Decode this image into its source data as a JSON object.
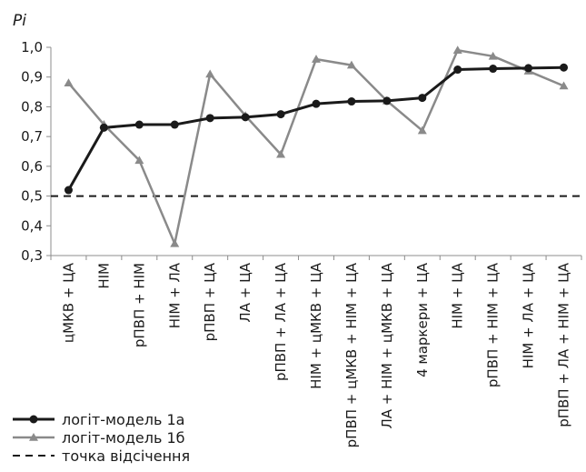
{
  "chart_data": {
    "type": "line",
    "ylabel": "Pi",
    "ylim": [
      0.3,
      1.0
    ],
    "yticks": [
      "0,3",
      "0,4",
      "0,5",
      "0,6",
      "0,7",
      "0,8",
      "0,9",
      "1,0"
    ],
    "categories": [
      "цМКВ + ЦА",
      "НІМ",
      "рПВП + НІМ",
      "НІМ + ЛА",
      "рПВП + ЦА",
      "ЛА + ЦА",
      "рПВП + ЛА + ЦА",
      "НІМ + цМКВ + ЦА",
      "рПВП + цМКВ + НІМ + ЦА",
      "ЛА + НІМ + цМКВ + ЦА",
      "4 маркери + ЦА",
      "НІМ + ЦА",
      "рПВП + НІМ + ЦА",
      "НІМ + ЛА + ЦА",
      "рПВП + ЛА + НІМ + ЦА"
    ],
    "series": [
      {
        "name": "логіт-модель 1а",
        "color": "#1a1a1a",
        "marker": "circle",
        "values": [
          0.52,
          0.73,
          0.74,
          0.74,
          0.762,
          0.765,
          0.775,
          0.81,
          0.818,
          0.82,
          0.83,
          0.925,
          0.928,
          0.93,
          0.932
        ]
      },
      {
        "name": "логіт-модель 1б",
        "color": "#8a8a8a",
        "marker": "triangle",
        "values": [
          0.88,
          0.74,
          0.62,
          0.34,
          0.91,
          0.77,
          0.64,
          0.96,
          0.94,
          0.82,
          0.72,
          0.99,
          0.97,
          0.92,
          0.87
        ]
      }
    ],
    "threshold": {
      "name": "точка відсічення",
      "value": 0.5,
      "color": "#1a1a1a",
      "style": "dashed"
    },
    "grid": false,
    "legend_position": "bottom-left"
  }
}
